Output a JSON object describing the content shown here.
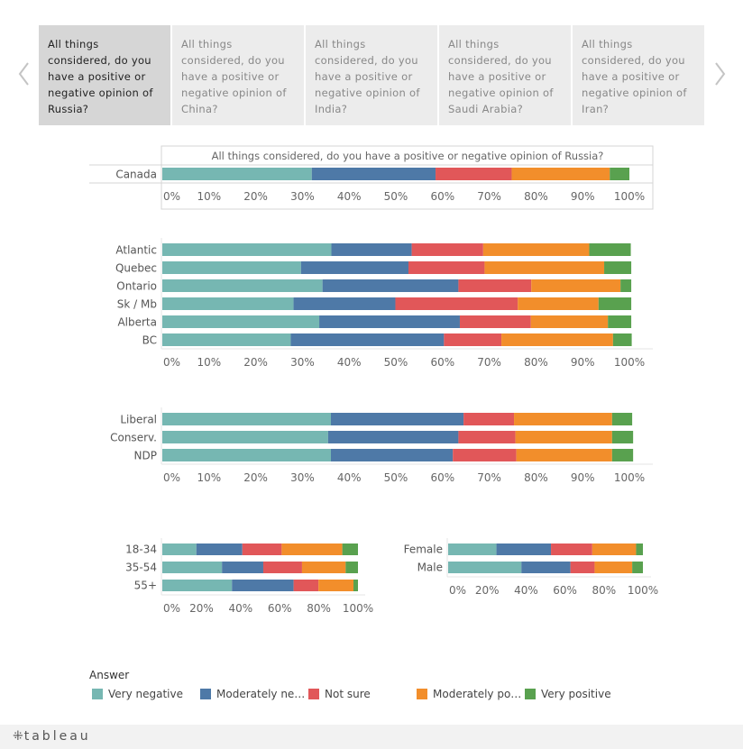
{
  "colors": {
    "very_negative": "#76b7b2",
    "moderately_negative": "#4e79a7",
    "not_sure": "#e15759",
    "moderately_positive": "#f28e2b",
    "very_positive": "#59a14f"
  },
  "tabs": [
    {
      "label": "All things considered, do you have a positive or negative opinion of Russia?",
      "active": true
    },
    {
      "label": "All things considered, do you have a positive or negative opinion of China?",
      "active": false
    },
    {
      "label": "All things considered, do you have a positive or negative opinion of India?",
      "active": false
    },
    {
      "label": "All things considered, do you have a positive or negative opinion of Saudi Arabia?",
      "active": false
    },
    {
      "label": "All things considered, do you have a positive or negative opinion of Iran?",
      "active": false
    }
  ],
  "nav": {
    "prev_icon": "chevron-left-icon",
    "next_icon": "chevron-right-icon"
  },
  "legend": {
    "title": "Answer",
    "items": [
      {
        "label": "Very negative",
        "color_key": "very_negative"
      },
      {
        "label": "Moderately ne…",
        "color_key": "moderately_negative"
      },
      {
        "label": "Not sure",
        "color_key": "not_sure"
      },
      {
        "label": "Moderately po…",
        "color_key": "moderately_positive"
      },
      {
        "label": "Very positive",
        "color_key": "very_positive"
      }
    ]
  },
  "footer": {
    "brand": "tableau"
  },
  "chart_data": [
    {
      "type": "bar",
      "orientation": "horizontal",
      "stacked": true,
      "title": "All things considered, do you have a positive or negative opinion of Russia?",
      "categories": [
        "Canada"
      ],
      "xlim": [
        0,
        100
      ],
      "ticks": [
        "0%",
        "10%",
        "20%",
        "30%",
        "40%",
        "50%",
        "60%",
        "70%",
        "80%",
        "90%",
        "100%"
      ],
      "series": [
        {
          "name": "Very negative",
          "values": [
            32
          ]
        },
        {
          "name": "Moderately negative",
          "values": [
            26.5
          ]
        },
        {
          "name": "Not sure",
          "values": [
            16.3
          ]
        },
        {
          "name": "Moderately positive",
          "values": [
            21
          ]
        },
        {
          "name": "Very positive",
          "values": [
            4.2
          ]
        }
      ]
    },
    {
      "type": "bar",
      "orientation": "horizontal",
      "stacked": true,
      "categories": [
        "Atlantic",
        "Quebec",
        "Ontario",
        "Sk / Mb",
        "Alberta",
        "BC"
      ],
      "xlim": [
        0,
        100
      ],
      "ticks": [
        "0%",
        "10%",
        "20%",
        "30%",
        "40%",
        "50%",
        "60%",
        "70%",
        "80%",
        "90%",
        "100%"
      ],
      "series": [
        {
          "name": "Very negative",
          "values": [
            36.2,
            29.7,
            34.3,
            28.1,
            33.6,
            27.5
          ]
        },
        {
          "name": "Moderately negative",
          "values": [
            17.2,
            23,
            29.1,
            21.8,
            30.1,
            32.8
          ]
        },
        {
          "name": "Not sure",
          "values": [
            15.3,
            16.3,
            15.6,
            26.2,
            15.2,
            12.3
          ]
        },
        {
          "name": "Moderately positive",
          "values": [
            22.7,
            25.6,
            19.1,
            17.3,
            16.5,
            23.9
          ]
        },
        {
          "name": "Very positive",
          "values": [
            8.9,
            5.8,
            2.3,
            7.0,
            5.0,
            4.0
          ]
        }
      ]
    },
    {
      "type": "bar",
      "orientation": "horizontal",
      "stacked": true,
      "categories": [
        "Liberal",
        "Conserv.",
        "NDP"
      ],
      "xlim": [
        0,
        100
      ],
      "ticks": [
        "0%",
        "10%",
        "20%",
        "30%",
        "40%",
        "50%",
        "60%",
        "70%",
        "80%",
        "90%",
        "100%"
      ],
      "series": [
        {
          "name": "Very negative",
          "values": [
            36.1,
            35.5,
            36.1
          ]
        },
        {
          "name": "Moderately negative",
          "values": [
            28.4,
            27.9,
            26.1
          ]
        },
        {
          "name": "Not sure",
          "values": [
            10.8,
            12.2,
            13.6
          ]
        },
        {
          "name": "Moderately positive",
          "values": [
            21.0,
            20.7,
            20.5
          ]
        },
        {
          "name": "Very positive",
          "values": [
            4.3,
            4.5,
            4.5
          ]
        }
      ]
    },
    {
      "type": "bar",
      "orientation": "horizontal",
      "stacked": true,
      "categories": [
        "18-34",
        "35-54",
        "55+"
      ],
      "xlim": [
        0,
        100
      ],
      "ticks": [
        "0%",
        "20%",
        "40%",
        "60%",
        "80%",
        "100%"
      ],
      "series": [
        {
          "name": "Very negative",
          "values": [
            17.4,
            30.5,
            35.6
          ]
        },
        {
          "name": "Moderately negative",
          "values": [
            23.5,
            21.1,
            31.5
          ]
        },
        {
          "name": "Not sure",
          "values": [
            20.1,
            19.8,
            12.7
          ]
        },
        {
          "name": "Moderately positive",
          "values": [
            31.0,
            22.3,
            17.9
          ]
        },
        {
          "name": "Very positive",
          "values": [
            8.0,
            6.3,
            2.3
          ]
        }
      ]
    },
    {
      "type": "bar",
      "orientation": "horizontal",
      "stacked": true,
      "categories": [
        "Female",
        "Male"
      ],
      "xlim": [
        0,
        100
      ],
      "ticks": [
        "0%",
        "20%",
        "40%",
        "60%",
        "80%",
        "100%"
      ],
      "series": [
        {
          "name": "Very negative",
          "values": [
            24.8,
            37.6
          ]
        },
        {
          "name": "Moderately negative",
          "values": [
            28.0,
            25.2
          ]
        },
        {
          "name": "Not sure",
          "values": [
            21.2,
            12.4
          ]
        },
        {
          "name": "Moderately positive",
          "values": [
            22.5,
            19.3
          ]
        },
        {
          "name": "Very positive",
          "values": [
            3.5,
            5.5
          ]
        }
      ]
    }
  ]
}
